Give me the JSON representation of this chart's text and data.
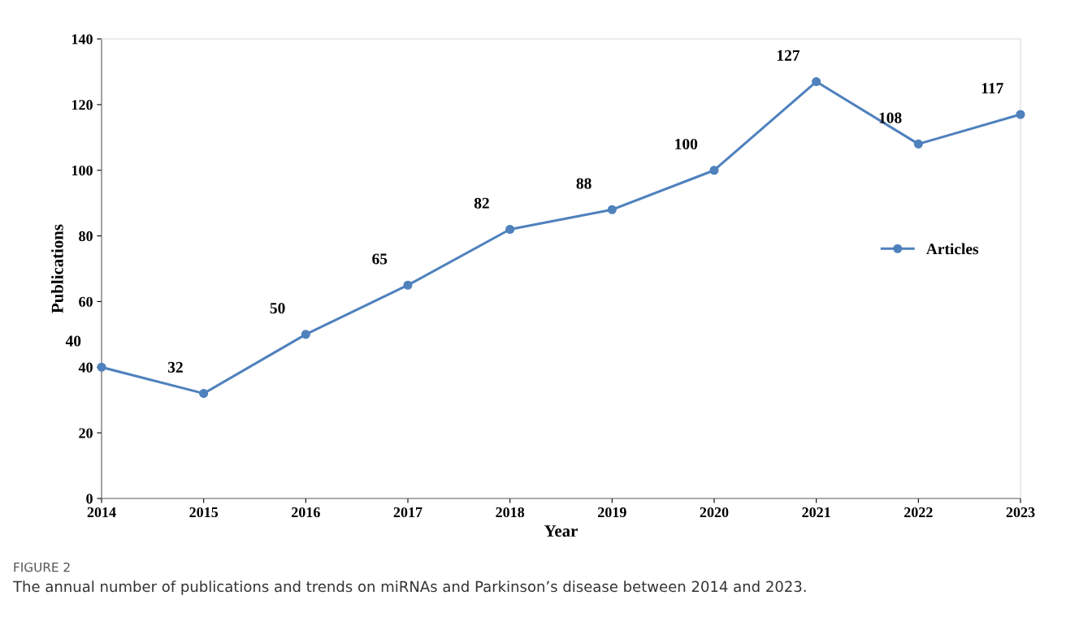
{
  "chart_data": {
    "type": "line",
    "xlabel": "Year",
    "ylabel": "Publications",
    "x": [
      2014,
      2015,
      2016,
      2017,
      2018,
      2019,
      2020,
      2021,
      2022,
      2023
    ],
    "series": [
      {
        "name": "Articles",
        "color": "#4f81bd",
        "values": [
          40,
          32,
          50,
          65,
          82,
          88,
          100,
          127,
          108,
          117
        ]
      }
    ],
    "xlim": [
      2014,
      2023
    ],
    "xticks": [
      2014,
      2015,
      2016,
      2017,
      2018,
      2019,
      2020,
      2021,
      2022,
      2023
    ],
    "ylim": [
      0,
      140
    ],
    "yticks": [
      0,
      20,
      40,
      60,
      80,
      100,
      120,
      140
    ],
    "marker": "circle",
    "line_style": "solid",
    "grid": false,
    "legend": "right",
    "data_labels": true,
    "annotations": [
      "FIGURE 2",
      "The annual number of publications and trends on miRNAs and Parkinson’s disease between 2014 and 2023."
    ]
  }
}
